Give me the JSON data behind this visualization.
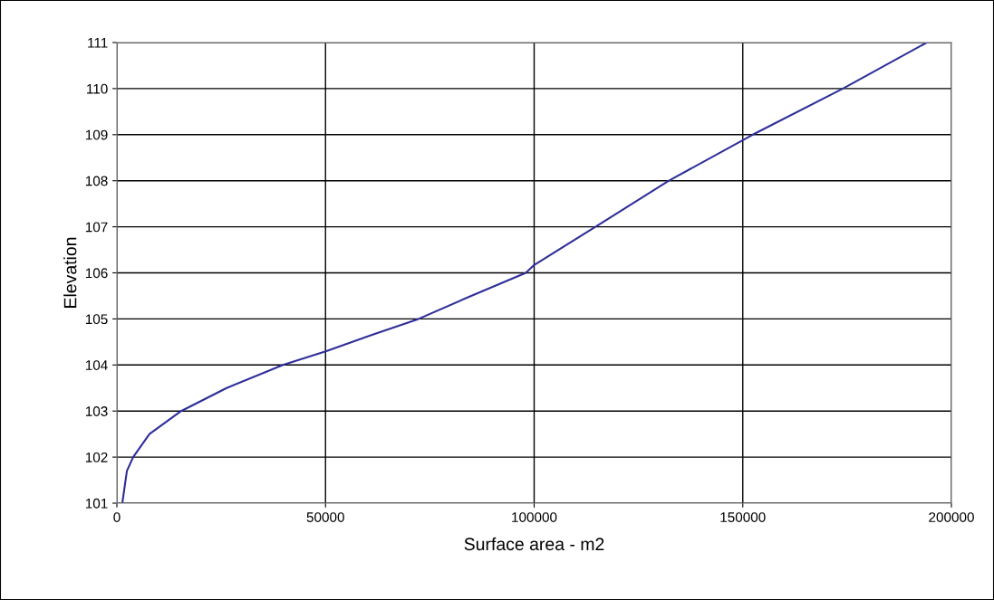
{
  "chart_data": {
    "type": "line",
    "xlabel": "Surface area - m2",
    "ylabel": "Elevation",
    "x": [
      1300,
      2400,
      3900,
      7800,
      15400,
      26300,
      39800,
      50200,
      61000,
      72300,
      84900,
      98000,
      100000,
      114700,
      132300,
      152400,
      174000,
      194100
    ],
    "series": [
      {
        "color": "#2e2e9a",
        "values": [
          101.0,
          101.7,
          102.0,
          102.5,
          103.0,
          103.5,
          104.0,
          104.3,
          104.65,
          105.0,
          105.5,
          106.0,
          106.17,
          107.0,
          108.0,
          109.0,
          110.0,
          111.0
        ]
      }
    ],
    "xlim": [
      0,
      200000
    ],
    "xticks": [
      0,
      50000,
      100000,
      150000,
      200000
    ],
    "ylim": [
      101,
      111
    ],
    "yticks": [
      101,
      102,
      103,
      104,
      105,
      106,
      107,
      108,
      109,
      110,
      111
    ],
    "grid": true,
    "marker": "none",
    "line_style": "solid"
  }
}
